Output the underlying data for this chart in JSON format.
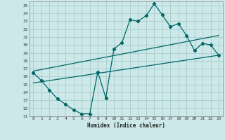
{
  "xlabel": "Humidex (Indice chaleur)",
  "bg_color": "#cce8e8",
  "grid_color": "#aacccc",
  "line_color": "#006666",
  "xlim": [
    -0.5,
    23.5
  ],
  "ylim": [
    21,
    35.5
  ],
  "xticks": [
    0,
    1,
    2,
    3,
    4,
    5,
    6,
    7,
    8,
    9,
    10,
    11,
    12,
    13,
    14,
    15,
    16,
    17,
    18,
    19,
    20,
    21,
    22,
    23
  ],
  "yticks": [
    21,
    22,
    23,
    24,
    25,
    26,
    27,
    28,
    29,
    30,
    31,
    32,
    33,
    34,
    35
  ],
  "line1_x": [
    0,
    1,
    2,
    3,
    4,
    5,
    6,
    7,
    8,
    9,
    10,
    11,
    12,
    13,
    14,
    15,
    16,
    17,
    18,
    19,
    20,
    21,
    22,
    23
  ],
  "line1_y": [
    26.5,
    25.5,
    24.3,
    23.2,
    22.5,
    21.8,
    21.3,
    21.3,
    26.6,
    23.3,
    29.5,
    30.3,
    33.2,
    33.0,
    33.7,
    35.2,
    33.8,
    32.3,
    32.7,
    31.2,
    29.3,
    30.2,
    30.0,
    28.7
  ],
  "line2_x": [
    0,
    23
  ],
  "line2_y": [
    25.2,
    28.7
  ],
  "line3_x": [
    0,
    23
  ],
  "line3_y": [
    26.7,
    31.2
  ]
}
